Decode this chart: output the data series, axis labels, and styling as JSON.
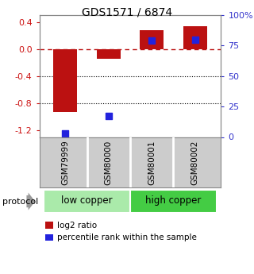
{
  "title": "GDS1571 / 6874",
  "samples": [
    "GSM79999",
    "GSM80000",
    "GSM80001",
    "GSM80002"
  ],
  "log2_ratios": [
    -0.93,
    -0.15,
    0.28,
    0.33
  ],
  "percentile_ranks": [
    3,
    17,
    79,
    80
  ],
  "groups": [
    {
      "label": "low copper",
      "color_light": "#ccf5cc",
      "color_dark": "#55cc55",
      "indices": [
        0,
        1
      ]
    },
    {
      "label": "high copper",
      "color_light": "#55cc55",
      "color_dark": "#33aa33",
      "indices": [
        2,
        3
      ]
    }
  ],
  "ylim_left": [
    -1.3,
    0.5
  ],
  "yticks_left": [
    -1.2,
    -0.8,
    -0.4,
    0.0,
    0.4
  ],
  "ylim_right": [
    0,
    100
  ],
  "yticks_right": [
    0,
    25,
    50,
    75,
    100
  ],
  "ytick_labels_right": [
    "0",
    "25",
    "50",
    "75",
    "100%"
  ],
  "bar_color": "#bb1111",
  "dot_color": "#2222dd",
  "bar_width": 0.55,
  "dotted_lines": [
    -0.4,
    -0.8
  ],
  "bg_color": "#ffffff",
  "left_tick_color": "#cc1111",
  "right_tick_color": "#3333cc",
  "sample_bg": "#cccccc",
  "group_low_color": "#aaeaaa",
  "group_high_color": "#44cc44",
  "legend_items": [
    "log2 ratio",
    "percentile rank within the sample"
  ]
}
